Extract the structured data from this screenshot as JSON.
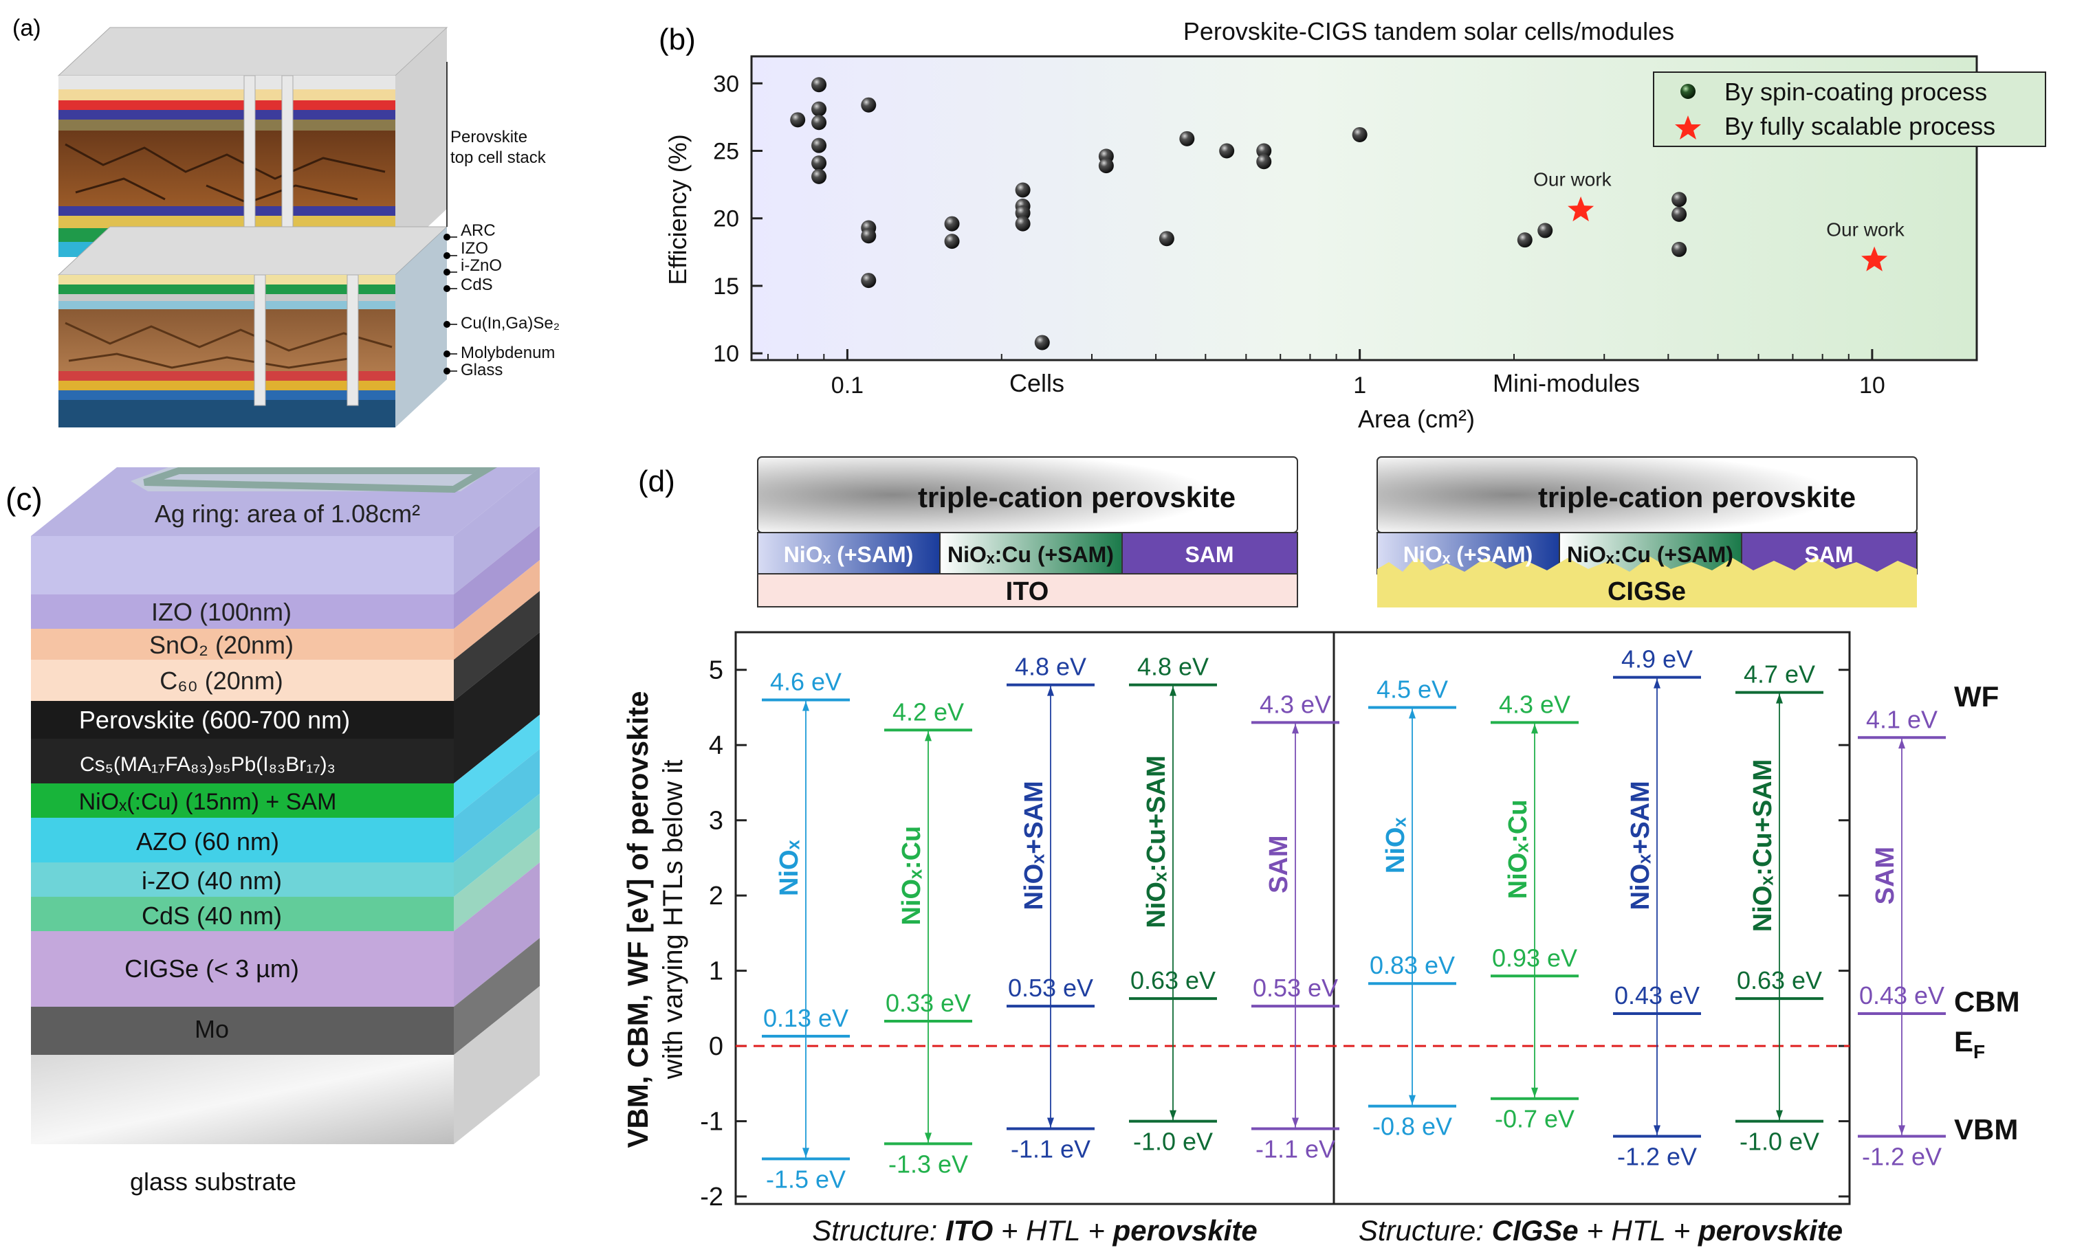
{
  "panel_a": {
    "label": "(a)",
    "callouts": [
      "Perovskite top cell stack",
      "ARC",
      "IZO",
      "i-ZnO",
      "CdS",
      "Cu(In,Ga)Se₂",
      "Molybdenum",
      "Glass"
    ]
  },
  "panel_b": {
    "label": "(b)",
    "chart_data": {
      "type": "scatter",
      "title": "Perovskite-CIGS tandem solar cells/modules",
      "xlabel": "Area (cm²)",
      "ylabel": "Efficiency (%)",
      "xscale": "log",
      "xlim": [
        0.065,
        16
      ],
      "ylim": [
        9.5,
        32
      ],
      "xticks": [
        {
          "v": 0.1,
          "label": "0.1"
        },
        {
          "v": 1,
          "label": "1"
        },
        {
          "v": 10,
          "label": "10"
        }
      ],
      "yticks": [
        10,
        15,
        20,
        25,
        30
      ],
      "region_labels": {
        "left": "Cells",
        "right": "Mini-modules"
      },
      "series": [
        {
          "name": "By spin-coating process",
          "marker": "sphere",
          "color": "#1a1a1a",
          "points": [
            [
              0.088,
              29.9
            ],
            [
              0.088,
              28.1
            ],
            [
              0.088,
              27.1
            ],
            [
              0.088,
              25.4
            ],
            [
              0.088,
              24.1
            ],
            [
              0.088,
              23.1
            ],
            [
              0.08,
              27.3
            ],
            [
              0.11,
              28.4
            ],
            [
              0.11,
              19.3
            ],
            [
              0.11,
              18.7
            ],
            [
              0.11,
              15.4
            ],
            [
              0.16,
              19.6
            ],
            [
              0.16,
              18.3
            ],
            [
              0.22,
              22.1
            ],
            [
              0.22,
              20.9
            ],
            [
              0.22,
              20.4
            ],
            [
              0.22,
              19.6
            ],
            [
              0.24,
              10.8
            ],
            [
              0.32,
              24.6
            ],
            [
              0.32,
              23.9
            ],
            [
              0.42,
              18.5
            ],
            [
              0.46,
              25.9
            ],
            [
              0.55,
              25.0
            ],
            [
              0.65,
              25.0
            ],
            [
              0.65,
              24.2
            ],
            [
              1.0,
              26.2
            ],
            [
              2.1,
              18.4
            ],
            [
              2.3,
              19.1
            ],
            [
              4.2,
              21.4
            ],
            [
              4.2,
              20.3
            ],
            [
              4.2,
              17.7
            ]
          ]
        },
        {
          "name": "By fully scalable process",
          "marker": "star",
          "color": "#ff2a1a",
          "points": [
            [
              2.7,
              20.6
            ],
            [
              10.1,
              16.9
            ]
          ]
        }
      ],
      "annotations": [
        {
          "text": "Our work",
          "x": 2.6,
          "y": 22.4
        },
        {
          "text": "Our work",
          "x": 9.7,
          "y": 18.7
        }
      ],
      "legend_position": "top-right"
    }
  },
  "panel_c": {
    "label": "(c)",
    "layers": [
      {
        "text": "Ag ring: area of 1.08cm²"
      },
      {
        "text": "IZO (100nm)"
      },
      {
        "text": "SnO₂ (20nm)"
      },
      {
        "text": "C₆₀ (20nm)"
      },
      {
        "text": "Perovskite (600-700 nm)"
      },
      {
        "text": "Cs₅(MA₁₇FA₈₃)₉₅Pb(I₈₃Br₁₇)₃"
      },
      {
        "text": "NiOₓ(:Cu) (15nm) + SAM"
      },
      {
        "text": "AZO (60 nm)"
      },
      {
        "text": "i-ZO (40 nm)"
      },
      {
        "text": "CdS (40 nm)"
      },
      {
        "text": "CIGSe (< 3 µm)"
      },
      {
        "text": "Mo"
      },
      {
        "text": "glass substrate"
      }
    ]
  },
  "panel_d": {
    "label": "(d)",
    "stack_left": {
      "perovskite": "triple-cation perovskite",
      "htls": [
        "NiOₓ (+SAM)",
        "NiOₓ:Cu (+SAM)",
        "SAM"
      ],
      "substrate": "ITO"
    },
    "stack_right": {
      "perovskite": "triple-cation perovskite",
      "htls": [
        "NiOₓ (+SAM)",
        "NiOₓ:Cu (+SAM)",
        "SAM"
      ],
      "substrate": "CIGSe"
    },
    "ylabel_line1": "VBM, CBM, WF [eV] of perovskite",
    "ylabel_line2": "with varying HTLs below it",
    "yticks": [
      -2,
      -1,
      0,
      1,
      2,
      3,
      4,
      5
    ],
    "ylim": [
      -2.1,
      5.5
    ],
    "right_labels": {
      "wf": "WF",
      "cbm": "CBM",
      "ef": "E",
      "ef_sub": "F",
      "vbm": "VBM"
    },
    "caption_left": {
      "prefix": "Structure: ",
      "sub": "ITO",
      "mid": " + HTL + ",
      "pvk": "perovskite"
    },
    "caption_right": {
      "prefix": "Structure: ",
      "sub": "CIGSe",
      "mid": " + HTL + ",
      "pvk": "perovskite"
    },
    "chart_data": {
      "type": "energy-level",
      "groups": [
        {
          "structure": "ITO",
          "columns": [
            {
              "htl": "NiOₓ",
              "color": "#1e9bd7",
              "wf": 4.6,
              "cbm": 0.13,
              "vbm": -1.5,
              "wf_label": "4.6 eV",
              "cbm_label": "0.13 eV",
              "vbm_label": "-1.5 eV"
            },
            {
              "htl": "NiOₓ:Cu",
              "color": "#22b14c",
              "wf": 4.2,
              "cbm": 0.33,
              "vbm": -1.3,
              "wf_label": "4.2 eV",
              "cbm_label": "0.33 eV",
              "vbm_label": "-1.3 eV"
            },
            {
              "htl": "NiOₓ+SAM",
              "color": "#1f3fa0",
              "wf": 4.8,
              "cbm": 0.53,
              "vbm": -1.1,
              "wf_label": "4.8 eV",
              "cbm_label": "0.53 eV",
              "vbm_label": "-1.1 eV"
            },
            {
              "htl": "NiOₓ:Cu+SAM",
              "color": "#0e6b35",
              "wf": 4.8,
              "cbm": 0.63,
              "vbm": -1.0,
              "wf_label": "4.8 eV",
              "cbm_label": "0.63 eV",
              "vbm_label": "-1.0 eV"
            },
            {
              "htl": "SAM",
              "color": "#7a4fb5",
              "wf": 4.3,
              "cbm": 0.53,
              "vbm": -1.1,
              "wf_label": "4.3 eV",
              "cbm_label": "0.53 eV",
              "vbm_label": "-1.1 eV"
            }
          ]
        },
        {
          "structure": "CIGSe",
          "columns": [
            {
              "htl": "NiOₓ",
              "color": "#1e9bd7",
              "wf": 4.5,
              "cbm": 0.83,
              "vbm": -0.8,
              "wf_label": "4.5 eV",
              "cbm_label": "0.83 eV",
              "vbm_label": "-0.8 eV"
            },
            {
              "htl": "NiOₓ:Cu",
              "color": "#22b14c",
              "wf": 4.3,
              "cbm": 0.93,
              "vbm": -0.7,
              "wf_label": "4.3 eV",
              "cbm_label": "0.93 eV",
              "vbm_label": "-0.7 eV"
            },
            {
              "htl": "NiOₓ+SAM",
              "color": "#1f3fa0",
              "wf": 4.9,
              "cbm": 0.43,
              "vbm": -1.2,
              "wf_label": "4.9 eV",
              "cbm_label": "0.43 eV",
              "vbm_label": "-1.2 eV"
            },
            {
              "htl": "NiOₓ:Cu+SAM",
              "color": "#0e6b35",
              "wf": 4.7,
              "cbm": 0.63,
              "vbm": -1.0,
              "wf_label": "4.7 eV",
              "cbm_label": "0.63 eV",
              "vbm_label": "-1.0 eV"
            },
            {
              "htl": "SAM",
              "color": "#7a4fb5",
              "wf": 4.1,
              "cbm": 0.43,
              "vbm": -1.2,
              "wf_label": "4.1 eV",
              "cbm_label": "0.43 eV",
              "vbm_label": "-1.2 eV"
            }
          ]
        }
      ]
    }
  }
}
